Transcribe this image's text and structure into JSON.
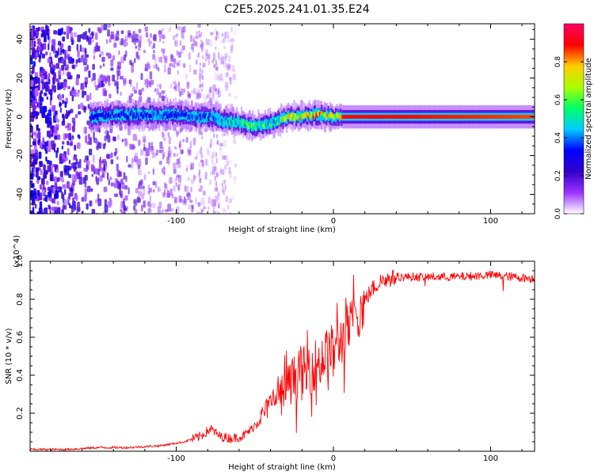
{
  "page_title": "C2E5.2025.241.01.35.E24",
  "chart_data": [
    {
      "type": "heatmap",
      "title": "C2E5.2025.241.01.35.E24",
      "xlabel": "Height of straight line (km)",
      "ylabel": "Frequency (Hz)",
      "xlim": [
        -193,
        128
      ],
      "ylim": [
        -50,
        48
      ],
      "xticks": [
        -100,
        0,
        100
      ],
      "xtick_labels": [
        "-100",
        "0",
        "100"
      ],
      "yticks": [
        -40,
        -20,
        0,
        20,
        40
      ],
      "ytick_labels": [
        "-40",
        "-20",
        "0",
        "20",
        "40"
      ],
      "grid": false,
      "colorbar": {
        "label": "Normalized spectral amplitude",
        "range": [
          0,
          1
        ],
        "ticks": [
          0.0,
          0.2,
          0.4,
          0.6,
          0.8
        ],
        "tick_labels": [
          "0.0",
          "0.2",
          "0.4",
          "0.6",
          "0.8"
        ],
        "colors": [
          "#ffffff",
          "#9933ff",
          "#3300cc",
          "#0000ff",
          "#00ccff",
          "#00ff66",
          "#aaff00",
          "#ffcc00",
          "#ff0000",
          "#ff0066"
        ]
      },
      "ridge": {
        "description": "dominant frequency track",
        "x": [
          -155,
          -140,
          -120,
          -100,
          -90,
          -80,
          -70,
          -60,
          -52,
          -45,
          -38,
          -30,
          -22,
          -15,
          -8,
          0,
          10,
          30,
          60,
          90,
          128
        ],
        "freq": [
          0,
          1,
          1,
          1,
          0,
          0,
          -2,
          -3,
          -5,
          -4,
          -3,
          0,
          0,
          1,
          1,
          0,
          0,
          0,
          0,
          0,
          0
        ],
        "amplitude": [
          0.35,
          0.4,
          0.45,
          0.4,
          0.45,
          0.45,
          0.55,
          0.6,
          0.7,
          0.65,
          0.6,
          0.85,
          0.85,
          0.95,
          0.9,
          0.85,
          0.9,
          0.9,
          0.88,
          0.87,
          0.85
        ]
      }
    },
    {
      "type": "line",
      "xlabel": "Height of straight line (km)",
      "ylabel": "SNR (10 * v/v)",
      "y_multiplier_label": "(x10^4)",
      "xlim": [
        -193,
        128
      ],
      "ylim": [
        0,
        1.0
      ],
      "xticks": [
        -100,
        0,
        100
      ],
      "xtick_labels": [
        "-100",
        "0",
        "100"
      ],
      "yticks": [
        0.2,
        0.4,
        0.6,
        0.8,
        1.0
      ],
      "ytick_labels": [
        "0.2",
        "0.4",
        "0.6",
        "0.8",
        "1.0"
      ],
      "grid": false,
      "color": "#ff0000",
      "series": [
        {
          "name": "SNR",
          "x": [
            -193,
            -170,
            -150,
            -130,
            -110,
            -95,
            -85,
            -78,
            -72,
            -65,
            -58,
            -52,
            -45,
            -38,
            -32,
            -25,
            -20,
            -15,
            -10,
            -5,
            0,
            5,
            10,
            15,
            20,
            25,
            30,
            40,
            60,
            80,
            100,
            128
          ],
          "y": [
            0.01,
            0.01,
            0.02,
            0.02,
            0.03,
            0.05,
            0.08,
            0.12,
            0.08,
            0.07,
            0.08,
            0.12,
            0.2,
            0.28,
            0.33,
            0.4,
            0.42,
            0.45,
            0.48,
            0.52,
            0.55,
            0.6,
            0.66,
            0.73,
            0.8,
            0.86,
            0.9,
            0.92,
            0.92,
            0.92,
            0.93,
            0.91
          ]
        }
      ]
    }
  ]
}
